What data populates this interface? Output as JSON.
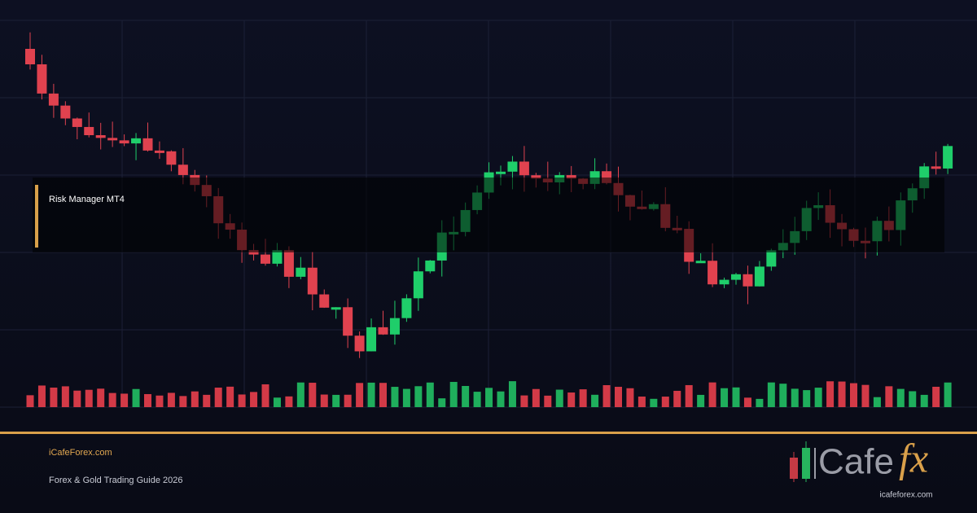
{
  "overlay": {
    "label": "Risk Manager MT4"
  },
  "footer": {
    "site": "iCafeForex.com",
    "subtitle": "Forex & Gold Trading Guide 2026"
  },
  "logo": {
    "brand": "Cafe",
    "accent": "fx",
    "url": "icafeforex.com"
  }
}
